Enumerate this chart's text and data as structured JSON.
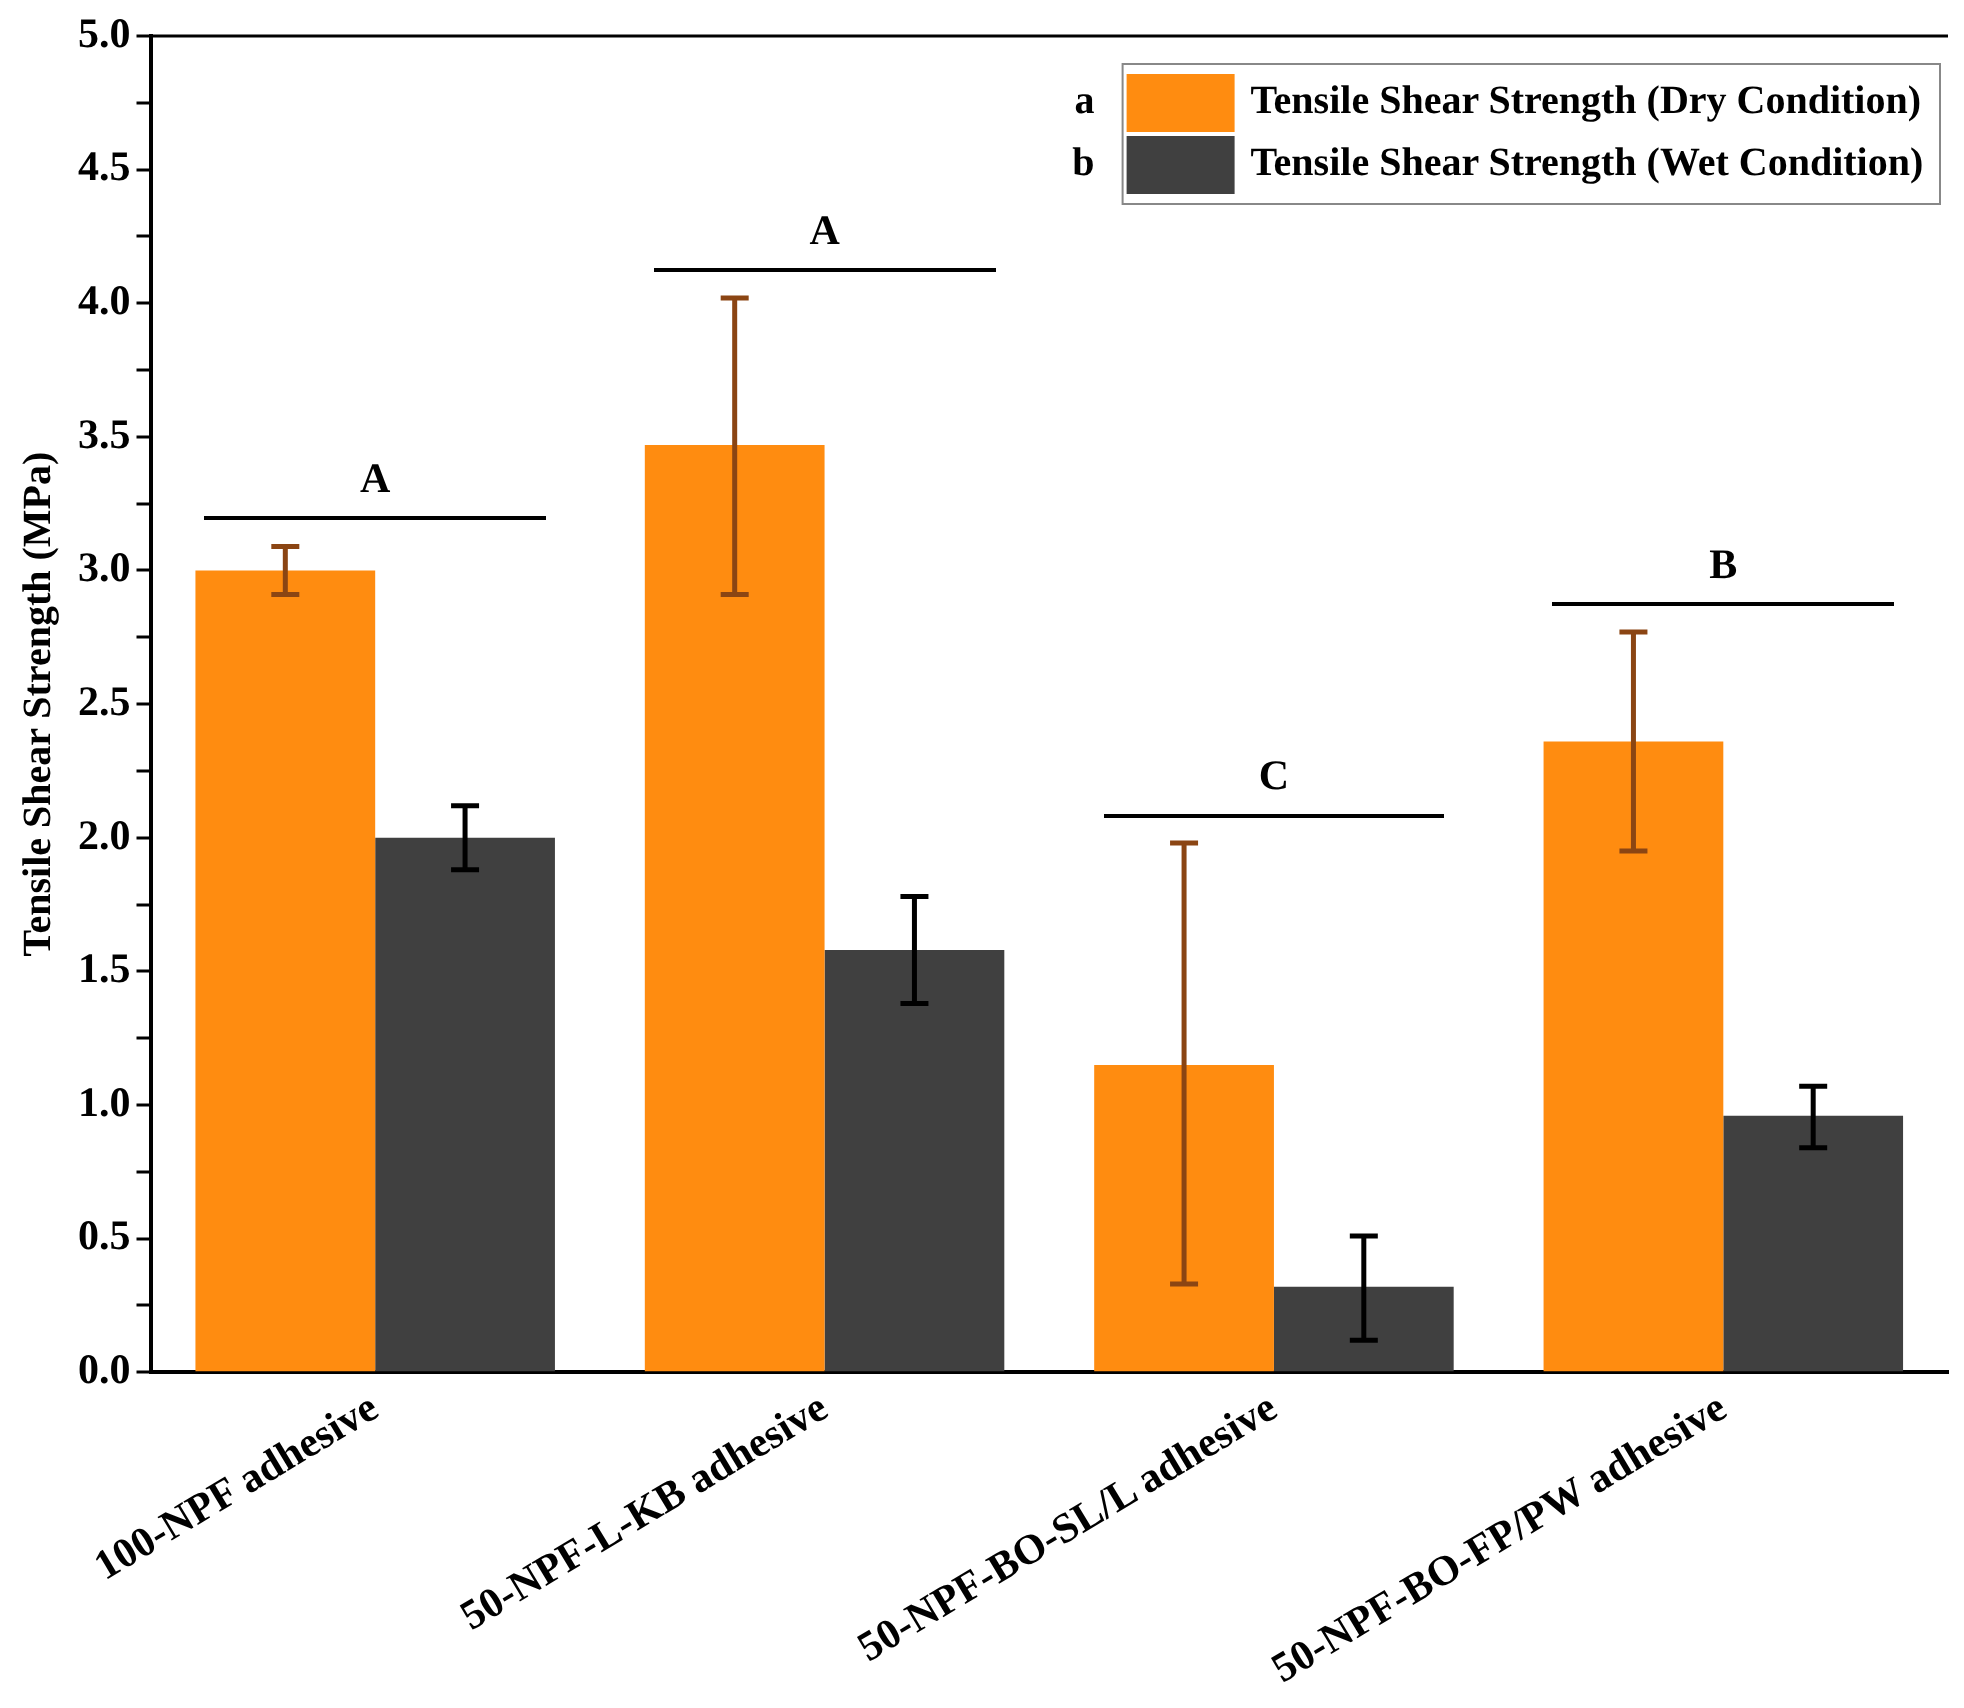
{
  "chart_data": {
    "type": "bar",
    "ylabel": "Tensile Shear Strength (MPa)",
    "categories": [
      "100-NPF adhesive",
      "50-NPF-L-KB adhesive",
      "50-NPF-BO-SL/L adhesive",
      "50-NPF-BO-FP/PW adhesive"
    ],
    "series": [
      {
        "name": "Tensile Shear Strength (Dry Condition)",
        "color": "#ff8c10",
        "values": [
          3.0,
          3.47,
          1.15,
          2.36
        ],
        "errors": [
          [
            2.91,
            3.09
          ],
          [
            2.91,
            4.02
          ],
          [
            0.33,
            1.98
          ],
          [
            1.95,
            2.77
          ]
        ]
      },
      {
        "name": "Tensile Shear Strength (Wet Condition)",
        "color": "#404040",
        "values": [
          2.0,
          1.58,
          0.32,
          0.96
        ],
        "errors": [
          [
            1.88,
            2.12
          ],
          [
            1.38,
            1.78
          ],
          [
            0.12,
            0.51
          ],
          [
            0.84,
            1.07
          ]
        ]
      }
    ],
    "ylim": [
      0,
      5
    ],
    "yticks": [
      {
        "value": 0,
        "label": "0.0"
      },
      {
        "value": 0.25,
        "label": null
      },
      0.5,
      {
        "value": 0.75,
        "label": null
      },
      {
        "value": 1,
        "label": "1.0"
      },
      {
        "value": 1.25,
        "label": null
      },
      1.5,
      {
        "value": 1.75,
        "label": null
      },
      {
        "value": 2,
        "label": "2.0"
      },
      {
        "value": 2.25,
        "label": null
      },
      2.5,
      {
        "value": 2.75,
        "label": null
      },
      {
        "value": 3,
        "label": "3.0"
      },
      {
        "value": 3.25,
        "label": null
      },
      3.5,
      {
        "value": 3.75,
        "label": null
      },
      {
        "value": 4,
        "label": "4.0"
      },
      {
        "value": 4.25,
        "label": null
      },
      4.5,
      {
        "value": 4.75,
        "label": null
      },
      {
        "value": 5,
        "label": "5.0"
      }
    ],
    "grid": false,
    "legend": "top right",
    "annotations": [
      "A",
      "A",
      "C",
      "B",
      "a",
      "b"
    ]
  }
}
